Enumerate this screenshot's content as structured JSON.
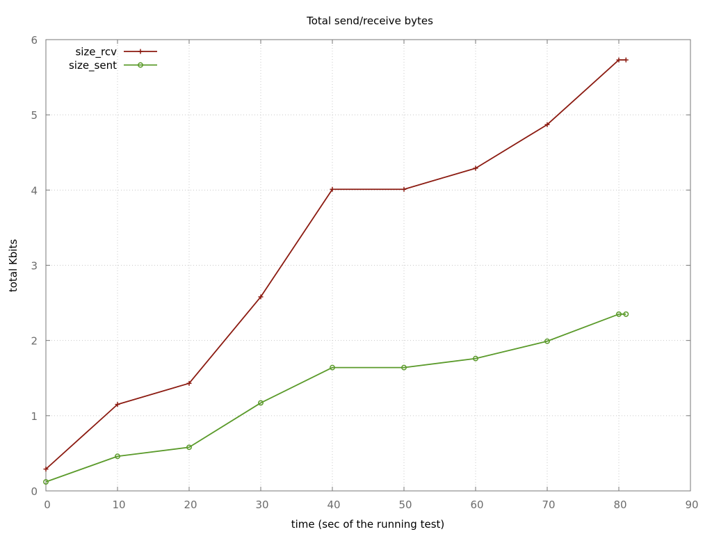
{
  "chart_data": {
    "type": "line",
    "title": "Total send/receive bytes",
    "xlabel": "time (sec of the running test)",
    "ylabel": "total Kbits",
    "xlim": [
      0,
      90
    ],
    "ylim": [
      0,
      6
    ],
    "xticks": [
      0,
      10,
      20,
      30,
      40,
      50,
      60,
      70,
      80,
      90
    ],
    "yticks": [
      0,
      1,
      2,
      3,
      4,
      5,
      6
    ],
    "grid": true,
    "legend_position": "top-left",
    "x": [
      0,
      10,
      20,
      30,
      40,
      50,
      60,
      70,
      80,
      81
    ],
    "series": [
      {
        "name": "size_rcv",
        "color": "#8b1a10",
        "marker": "plus",
        "values": [
          0.29,
          1.15,
          1.43,
          2.58,
          4.01,
          4.01,
          4.29,
          4.87,
          5.73,
          5.73
        ]
      },
      {
        "name": "size_sent",
        "color": "#5a9a2a",
        "marker": "circle",
        "values": [
          0.12,
          0.46,
          0.58,
          1.17,
          1.64,
          1.64,
          1.76,
          1.99,
          2.35,
          2.35
        ]
      }
    ]
  }
}
